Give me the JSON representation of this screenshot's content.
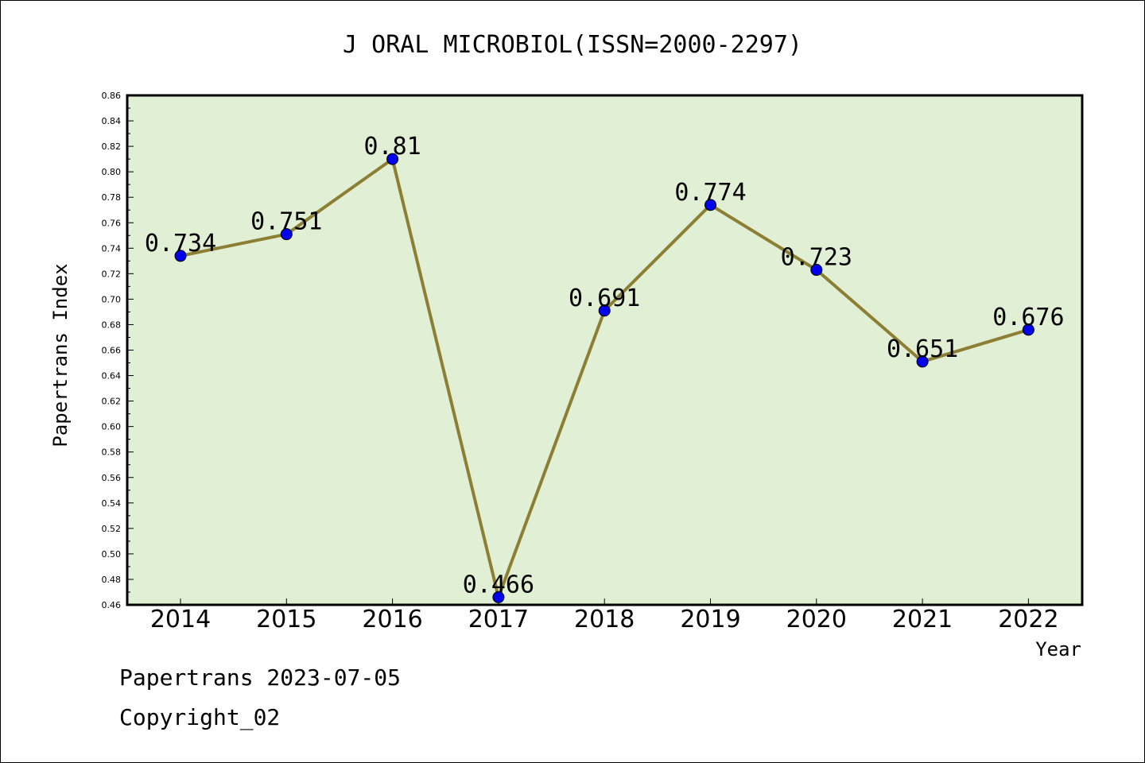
{
  "chart_data": {
    "type": "line",
    "title": "J ORAL MICROBIOL(ISSN=2000-2297)",
    "xlabel": "Year",
    "ylabel": "Papertrans Index",
    "categories": [
      "2014",
      "2015",
      "2016",
      "2017",
      "2018",
      "2019",
      "2020",
      "2021",
      "2022"
    ],
    "series": [
      {
        "values": [
          0.734,
          0.751,
          0.81,
          0.466,
          0.691,
          0.774,
          0.723,
          0.651,
          0.676
        ],
        "labels": [
          "0.734",
          "0.751",
          "0.81",
          "0.466",
          "0.691",
          "0.774",
          "0.723",
          "0.651",
          "0.676"
        ]
      }
    ],
    "yticks": [
      "0.46",
      "0.48",
      "0.50",
      "0.52",
      "0.54",
      "0.56",
      "0.58",
      "0.60",
      "0.62",
      "0.64",
      "0.66",
      "0.68",
      "0.70",
      "0.72",
      "0.74",
      "0.76",
      "0.78",
      "0.80",
      "0.82",
      "0.84",
      "0.86"
    ],
    "ylim": [
      0.46,
      0.86
    ],
    "grid": false,
    "legend": "none",
    "colors": {
      "plot_background": "#e1efd5",
      "line": "#8c7f34",
      "marker": "#0000ee",
      "axes": "#000000"
    }
  },
  "footer": {
    "line1": "Papertrans 2023-07-05",
    "line2": "Copyright_02"
  }
}
